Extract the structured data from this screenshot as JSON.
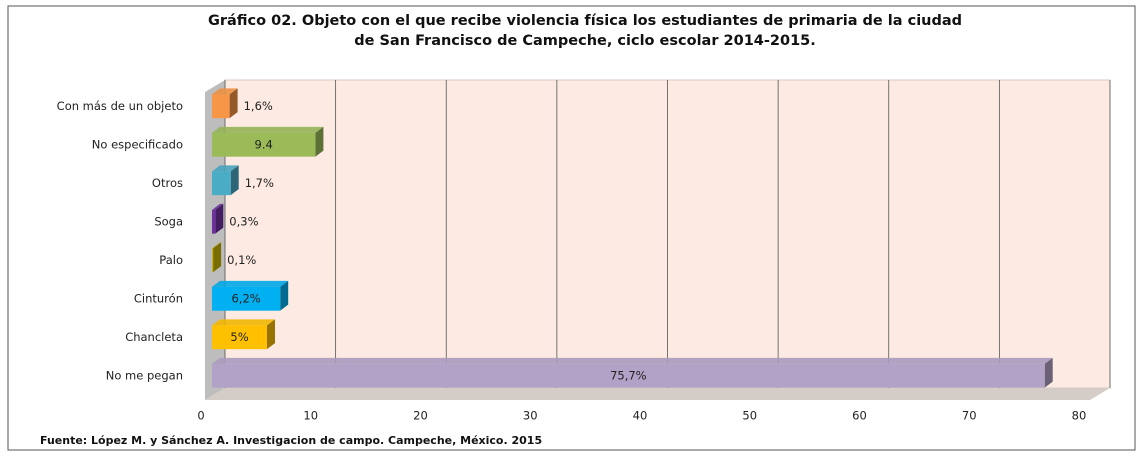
{
  "chart_data": {
    "type": "bar3d_horizontal",
    "title": [
      "Gráfico  02. Objeto con el que recibe violencia física los estudiantes de primaria de la ciudad",
      "de San Francisco de Campeche, ciclo escolar 2014-2015."
    ],
    "categories": [
      "Con más de un objeto",
      "No especificado",
      "Otros",
      "Soga",
      "Palo",
      "Cinturón",
      "Chancleta",
      "No me pegan"
    ],
    "values": [
      1.6,
      9.4,
      1.7,
      0.3,
      0.1,
      6.2,
      5,
      75.7
    ],
    "value_labels": [
      "1,6%",
      "9.4",
      "1,7%",
      "0,3%",
      "0,1%",
      "6,2%",
      "5%",
      "75,7%"
    ],
    "colors": [
      "#f79646",
      "#9bbb59",
      "#4bacc6",
      "#7030a0",
      "#c9b400",
      "#00b0f0",
      "#ffc000",
      "#b3a2c7"
    ],
    "xlim": [
      0,
      80
    ],
    "xticks": [
      0,
      10,
      20,
      30,
      40,
      50,
      60,
      70,
      80
    ],
    "grid": true,
    "source": "Fuente: López M. y Sánchez A. Investigacion de campo. Campeche, México. 2015"
  }
}
